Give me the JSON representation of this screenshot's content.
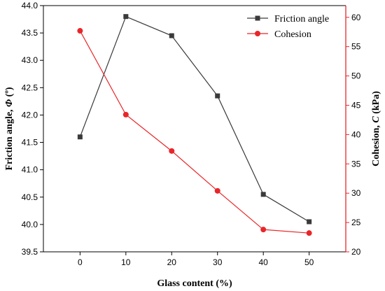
{
  "chart_data": {
    "type": "line",
    "x": [
      0,
      10,
      20,
      30,
      40,
      50
    ],
    "xlabel": "Glass content (%)",
    "xlim": [
      -8,
      58
    ],
    "xticks": [
      0,
      10,
      20,
      30,
      40,
      50
    ],
    "ylabel_left": {
      "prefix": "Friction angle, ",
      "symbol": "Φ",
      "suffix": " (º)"
    },
    "ylim_left": [
      39.5,
      44.0
    ],
    "yticks_left": [
      "39.5",
      "40.0",
      "40.5",
      "41.0",
      "41.5",
      "42.0",
      "42.5",
      "43.0",
      "43.5",
      "44.0"
    ],
    "ylabel_right": {
      "prefix": "Cohesion, ",
      "symbol": "C",
      "suffix": " (kPa)"
    },
    "ylim_right": [
      20,
      62
    ],
    "yticks_right": [
      20,
      25,
      30,
      35,
      40,
      45,
      50,
      55,
      60
    ],
    "legend_position": "top-right",
    "series": [
      {
        "name": "Friction angle",
        "axis": "left",
        "marker": "square",
        "color": "#3a3a3a",
        "values": [
          41.6,
          43.8,
          43.45,
          42.35,
          40.55,
          40.05
        ]
      },
      {
        "name": "Cohesion",
        "axis": "right",
        "marker": "circle",
        "color": "#e8262a",
        "values": [
          57.7,
          43.4,
          37.2,
          30.4,
          23.8,
          23.2
        ]
      }
    ]
  }
}
